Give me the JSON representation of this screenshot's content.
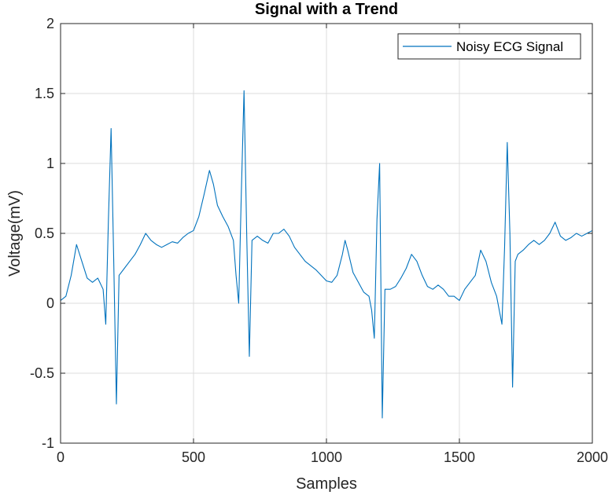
{
  "chart_data": {
    "type": "line",
    "title": "Signal with a Trend",
    "xlabel": "Samples",
    "ylabel": "Voltage(mV)",
    "xlim": [
      0,
      2000
    ],
    "ylim": [
      -1,
      2
    ],
    "xticks": [
      0,
      500,
      1000,
      1500,
      2000
    ],
    "xtick_labels": [
      "0",
      "500",
      "1000",
      "1500",
      "2000"
    ],
    "yticks": [
      -1,
      -0.5,
      0,
      0.5,
      1,
      1.5,
      2
    ],
    "ytick_labels": [
      "-1",
      "-0.5",
      "0",
      "0.5",
      "1",
      "1.5",
      "2"
    ],
    "grid": true,
    "legend": {
      "placement": "top-right",
      "entries": [
        "Noisy ECG Signal"
      ]
    },
    "series": [
      {
        "name": "Noisy ECG Signal",
        "color": "#0072bd",
        "x": [
          0,
          20,
          40,
          60,
          80,
          100,
          120,
          140,
          160,
          170,
          180,
          190,
          200,
          210,
          220,
          240,
          260,
          280,
          300,
          320,
          340,
          360,
          380,
          400,
          420,
          440,
          460,
          480,
          500,
          520,
          540,
          560,
          575,
          590,
          610,
          630,
          650,
          660,
          670,
          680,
          690,
          700,
          710,
          720,
          740,
          760,
          780,
          800,
          820,
          840,
          860,
          880,
          900,
          920,
          940,
          960,
          980,
          1000,
          1020,
          1040,
          1060,
          1070,
          1080,
          1100,
          1120,
          1140,
          1160,
          1170,
          1180,
          1190,
          1200,
          1210,
          1220,
          1240,
          1260,
          1280,
          1300,
          1320,
          1340,
          1360,
          1380,
          1400,
          1420,
          1440,
          1460,
          1480,
          1500,
          1520,
          1540,
          1560,
          1580,
          1600,
          1620,
          1640,
          1660,
          1670,
          1680,
          1690,
          1700,
          1710,
          1720,
          1740,
          1760,
          1780,
          1800,
          1820,
          1840,
          1860,
          1880,
          1900,
          1920,
          1940,
          1960,
          1980,
          2000
        ],
        "y": [
          0.02,
          0.05,
          0.2,
          0.42,
          0.3,
          0.18,
          0.15,
          0.18,
          0.1,
          -0.15,
          0.6,
          1.25,
          0.3,
          -0.72,
          0.2,
          0.25,
          0.3,
          0.35,
          0.42,
          0.5,
          0.45,
          0.42,
          0.4,
          0.42,
          0.44,
          0.43,
          0.47,
          0.5,
          0.52,
          0.62,
          0.78,
          0.95,
          0.85,
          0.7,
          0.62,
          0.55,
          0.45,
          0.2,
          0.0,
          0.8,
          1.52,
          0.5,
          -0.38,
          0.45,
          0.48,
          0.45,
          0.43,
          0.5,
          0.5,
          0.53,
          0.48,
          0.4,
          0.35,
          0.3,
          0.27,
          0.24,
          0.2,
          0.16,
          0.15,
          0.2,
          0.35,
          0.45,
          0.38,
          0.22,
          0.15,
          0.08,
          0.05,
          -0.05,
          -0.25,
          0.6,
          1.0,
          -0.82,
          0.1,
          0.1,
          0.12,
          0.18,
          0.25,
          0.35,
          0.3,
          0.2,
          0.12,
          0.1,
          0.13,
          0.1,
          0.05,
          0.05,
          0.02,
          0.1,
          0.15,
          0.2,
          0.38,
          0.3,
          0.15,
          0.05,
          -0.15,
          0.4,
          1.15,
          0.5,
          -0.6,
          0.3,
          0.35,
          0.38,
          0.42,
          0.45,
          0.42,
          0.45,
          0.5,
          0.58,
          0.48,
          0.45,
          0.47,
          0.5,
          0.48,
          0.5,
          0.52
        ]
      }
    ]
  }
}
